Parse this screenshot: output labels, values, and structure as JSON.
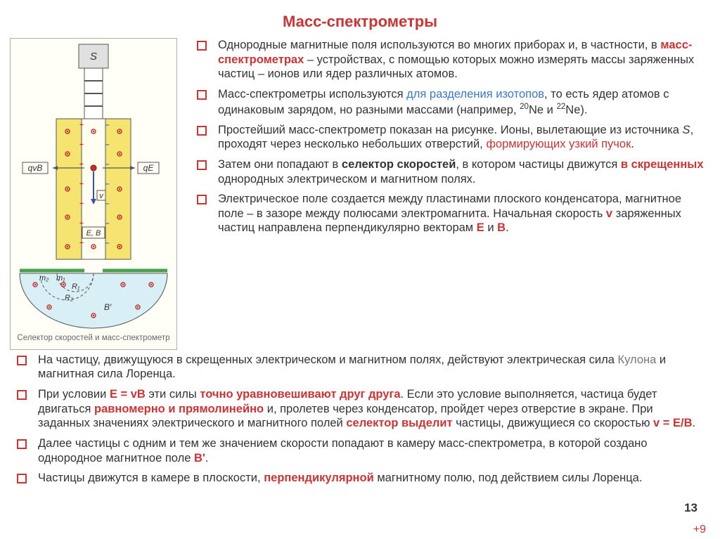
{
  "title": {
    "text": "Масс-спектрометры",
    "color": "#cc3333"
  },
  "bullet_border_color": "#cc3333",
  "page_number": "13",
  "plus_nine": {
    "text": "+9",
    "color": "#cc3333"
  },
  "figure": {
    "caption": "Селектор скоростей и масс-спектрометр",
    "border_color": "#b0b0a0",
    "bg": "#fffff8",
    "label_S": "S",
    "label_qvB": "qvB",
    "label_qE": "qE",
    "label_v": "v",
    "label_EB": "E, B",
    "label_m1": "m₁",
    "label_m2": "m₂",
    "label_R1": "R₁",
    "label_R2": "R₂",
    "label_Bprime": "B′",
    "plate_color": "#f5e470",
    "dot_color": "#c43030",
    "dot_blue": "#4a74b8",
    "chamber_fill": "#d8f0f5",
    "green_bar": "#4aa050",
    "source_fill": "#e0e0e0"
  },
  "right_points": [
    {
      "spans": [
        {
          "t": "Однородные магнитные поля используются во многих приборах и, в частности, в "
        },
        {
          "t": "масс-спектрометрах",
          "c": "#cc3333",
          "b": true
        },
        {
          "t": " – устройствах, с помощью которых можно измерять массы заряженных частиц – ионов или ядер различных атомов."
        }
      ]
    },
    {
      "spans": [
        {
          "t": "Масс-спектрометры используются "
        },
        {
          "t": "для разделения изотопов",
          "c": "#3a78c8"
        },
        {
          "t": ", то есть ядер атомов с одинаковым зарядом, но разными массами (например, "
        },
        {
          "t": "20",
          "sup": true
        },
        {
          "t": "Ne и "
        },
        {
          "t": "22",
          "sup": true
        },
        {
          "t": "Ne)."
        }
      ]
    },
    {
      "spans": [
        {
          "t": "Простейший масс-спектрометр показан на рисунке. Ионы, вылетающие из источника "
        },
        {
          "t": "S",
          "i": true
        },
        {
          "t": ", проходят через несколько небольших отверстий, "
        },
        {
          "t": "формирующих узкий пучок",
          "c": "#cc3333"
        },
        {
          "t": "."
        }
      ]
    },
    {
      "spans": [
        {
          "t": "Затем они попадают в "
        },
        {
          "t": "селектор скоростей",
          "b": true
        },
        {
          "t": ", в котором частицы движутся "
        },
        {
          "t": "в скрещенных",
          "c": "#cc3333",
          "b": true
        },
        {
          "t": " однородных электрическом и магнитном полях."
        }
      ]
    },
    {
      "spans": [
        {
          "t": "Электрическое поле создается между пластинами плоского конденсатора, магнитное поле – в зазоре между полюсами электромагнита. Начальная скорость "
        },
        {
          "t": "v",
          "c": "#cc3333",
          "b": true
        },
        {
          "t": " заряженных частиц направлена перпендикулярно векторам "
        },
        {
          "t": "E",
          "c": "#cc3333",
          "b": true
        },
        {
          "t": " и "
        },
        {
          "t": "B",
          "c": "#cc3333",
          "b": true
        },
        {
          "t": "."
        }
      ]
    }
  ],
  "bottom_points": [
    {
      "spans": [
        {
          "t": "На частицу, движущуюся в скрещенных электрическом и магнитном полях, действуют электрическая сила "
        },
        {
          "t": "Кулона",
          "c": "#777777"
        },
        {
          "t": " и магнитная сила Лоренца."
        }
      ]
    },
    {
      "spans": [
        {
          "t": "При условии "
        },
        {
          "t": "E = vB",
          "c": "#cc3333",
          "b": true
        },
        {
          "t": " эти силы "
        },
        {
          "t": "точно уравновешивают друг друга",
          "c": "#cc3333",
          "b": true
        },
        {
          "t": ". Если это условие выполняется, частица будет двигаться "
        },
        {
          "t": "равномерно и прямолинейно",
          "c": "#cc3333",
          "b": true
        },
        {
          "t": " и, пролетев через конденсатор, пройдет через отверстие в экране. При заданных значениях электрического и магнитного полей "
        },
        {
          "t": "селектор выделит",
          "c": "#cc3333",
          "b": true
        },
        {
          "t": " частицы, движущиеся со скоростью "
        },
        {
          "t": "v = E/B",
          "c": "#cc3333",
          "b": true
        },
        {
          "t": "."
        }
      ]
    },
    {
      "spans": [
        {
          "t": "Далее частицы с одним и тем же значением скорости попадают в камеру масс-спектрометра, в которой создано однородное магнитное поле "
        },
        {
          "t": "B'",
          "c": "#cc3333",
          "b": true
        },
        {
          "t": "."
        }
      ]
    },
    {
      "spans": [
        {
          "t": "Частицы движутся в камере в плоскости, "
        },
        {
          "t": "перпендикулярной",
          "c": "#cc3333",
          "b": true
        },
        {
          "t": " магнитному полю, под действием силы Лоренца."
        }
      ]
    }
  ]
}
